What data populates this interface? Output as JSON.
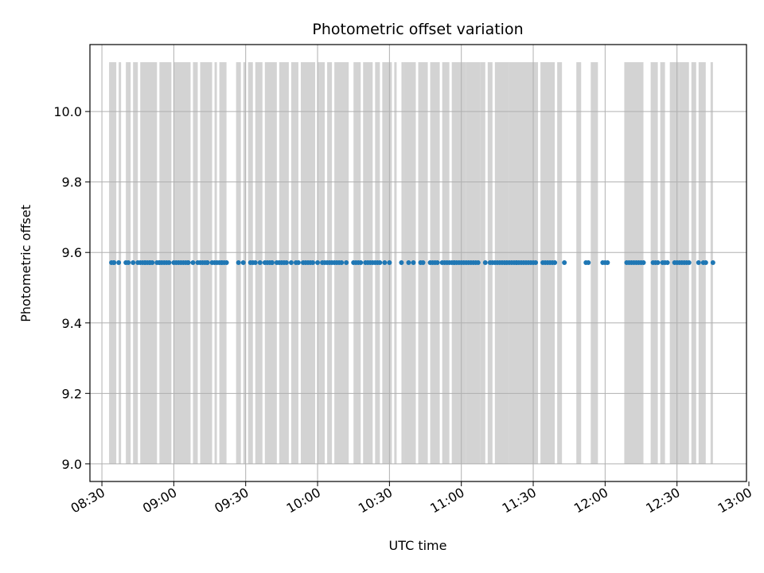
{
  "chart_data": {
    "type": "scatter",
    "title": "Photometric offset variation",
    "xlabel": "UTC time",
    "ylabel": "Photometric offset",
    "xlim": [
      "08:25",
      "12:59"
    ],
    "ylim": [
      8.95,
      10.19
    ],
    "xticks": [
      "08:30",
      "09:00",
      "09:30",
      "10:00",
      "10:30",
      "11:00",
      "11:30",
      "12:00",
      "12:30",
      "13:00"
    ],
    "yticks": [
      9.0,
      9.2,
      9.4,
      9.6,
      9.8,
      10.0
    ],
    "grid": true,
    "point_value": 9.571,
    "colors": {
      "points": "#1f77b4",
      "bands": "#d3d3d3",
      "grid": "#b0b0b0"
    },
    "band_y": [
      9.0,
      10.14
    ],
    "bands": [
      [
        "08:33",
        "08:36"
      ],
      [
        "08:37",
        "08:38"
      ],
      [
        "08:40",
        "08:42"
      ],
      [
        "08:43",
        "08:45"
      ],
      [
        "08:46",
        "08:53"
      ],
      [
        "08:54",
        "08:59"
      ],
      [
        "09:00",
        "09:07"
      ],
      [
        "09:08",
        "09:10"
      ],
      [
        "09:11",
        "09:16"
      ],
      [
        "09:17",
        "09:18"
      ],
      [
        "09:19",
        "09:22"
      ],
      [
        "09:26",
        "09:28"
      ],
      [
        "09:29",
        "09:30"
      ],
      [
        "09:31",
        "09:33"
      ],
      [
        "09:34",
        "09:37"
      ],
      [
        "09:38",
        "09:43"
      ],
      [
        "09:44",
        "09:48"
      ],
      [
        "09:49",
        "09:52"
      ],
      [
        "09:53",
        "09:59"
      ],
      [
        "10:00",
        "10:03"
      ],
      [
        "10:04",
        "10:06"
      ],
      [
        "10:07",
        "10:13"
      ],
      [
        "10:15",
        "10:18"
      ],
      [
        "10:19",
        "10:23"
      ],
      [
        "10:24",
        "10:26"
      ],
      [
        "10:27",
        "10:31"
      ],
      [
        "10:32",
        "10:33"
      ],
      [
        "10:35",
        "10:36"
      ],
      [
        "10:36",
        "10:41"
      ],
      [
        "10:42",
        "10:46"
      ],
      [
        "10:47",
        "10:51"
      ],
      [
        "10:52",
        "10:55"
      ],
      [
        "10:56",
        "11:02"
      ],
      [
        "11:02",
        "11:08"
      ],
      [
        "11:08",
        "11:10"
      ],
      [
        "11:11",
        "11:13"
      ],
      [
        "11:14",
        "11:20"
      ],
      [
        "11:20",
        "11:32"
      ],
      [
        "11:33",
        "11:39"
      ],
      [
        "11:40",
        "11:42"
      ],
      [
        "11:48",
        "11:50"
      ],
      [
        "11:54",
        "11:57"
      ],
      [
        "12:08",
        "12:16"
      ],
      [
        "12:19",
        "12:22"
      ],
      [
        "12:23",
        "12:25"
      ],
      [
        "12:27",
        "12:31"
      ],
      [
        "12:31",
        "12:35"
      ],
      [
        "12:36",
        "12:38"
      ],
      [
        "12:39",
        "12:42"
      ],
      [
        "12:44",
        "12:45"
      ]
    ],
    "points_x": [
      "08:34",
      "08:35",
      "08:35",
      "08:37",
      "08:40",
      "08:41",
      "08:43",
      "08:45",
      "08:46",
      "08:47",
      "08:48",
      "08:48",
      "08:49",
      "08:50",
      "08:50",
      "08:51",
      "08:53",
      "08:54",
      "08:54",
      "08:55",
      "08:56",
      "08:57",
      "08:58",
      "09:00",
      "09:01",
      "09:02",
      "09:03",
      "09:04",
      "09:05",
      "09:06",
      "09:06",
      "09:08",
      "09:10",
      "09:11",
      "09:12",
      "09:13",
      "09:14",
      "09:14",
      "09:16",
      "09:17",
      "09:18",
      "09:19",
      "09:20",
      "09:20",
      "09:21",
      "09:22",
      "09:27",
      "09:29",
      "09:32",
      "09:33",
      "09:34",
      "09:36",
      "09:38",
      "09:39",
      "09:40",
      "09:41",
      "09:41",
      "09:43",
      "09:44",
      "09:45",
      "09:46",
      "09:47",
      "09:49",
      "09:51",
      "09:52",
      "09:54",
      "09:55",
      "09:56",
      "09:57",
      "09:58",
      "10:00",
      "10:02",
      "10:03",
      "10:04",
      "10:05",
      "10:06",
      "10:07",
      "10:08",
      "10:09",
      "10:10",
      "10:12",
      "10:15",
      "10:16",
      "10:17",
      "10:18",
      "10:20",
      "10:21",
      "10:22",
      "10:23",
      "10:24",
      "10:25",
      "10:26",
      "10:28",
      "10:30",
      "10:35",
      "10:38",
      "10:40",
      "10:43",
      "10:44",
      "10:47",
      "10:48",
      "10:49",
      "10:50",
      "10:52",
      "10:53",
      "10:54",
      "10:55",
      "10:56",
      "10:57",
      "10:57",
      "10:58",
      "10:59",
      "11:00",
      "11:01",
      "11:02",
      "11:03",
      "11:04",
      "11:05",
      "11:06",
      "11:07",
      "11:10",
      "11:12",
      "11:13",
      "11:14",
      "11:15",
      "11:16",
      "11:17",
      "11:18",
      "11:19",
      "11:20",
      "11:21",
      "11:22",
      "11:23",
      "11:23",
      "11:24",
      "11:25",
      "11:26",
      "11:27",
      "11:28",
      "11:29",
      "11:30",
      "11:31",
      "11:34",
      "11:35",
      "11:36",
      "11:37",
      "11:38",
      "11:39",
      "11:43",
      "11:52",
      "11:53",
      "11:59",
      "12:00",
      "12:01",
      "12:09",
      "12:10",
      "12:11",
      "12:12",
      "12:13",
      "12:14",
      "12:15",
      "12:16",
      "12:20",
      "12:21",
      "12:22",
      "12:24",
      "12:25",
      "12:26",
      "12:29",
      "12:30",
      "12:31",
      "12:32",
      "12:33",
      "12:34",
      "12:35",
      "12:39",
      "12:41",
      "12:42",
      "12:45"
    ]
  }
}
